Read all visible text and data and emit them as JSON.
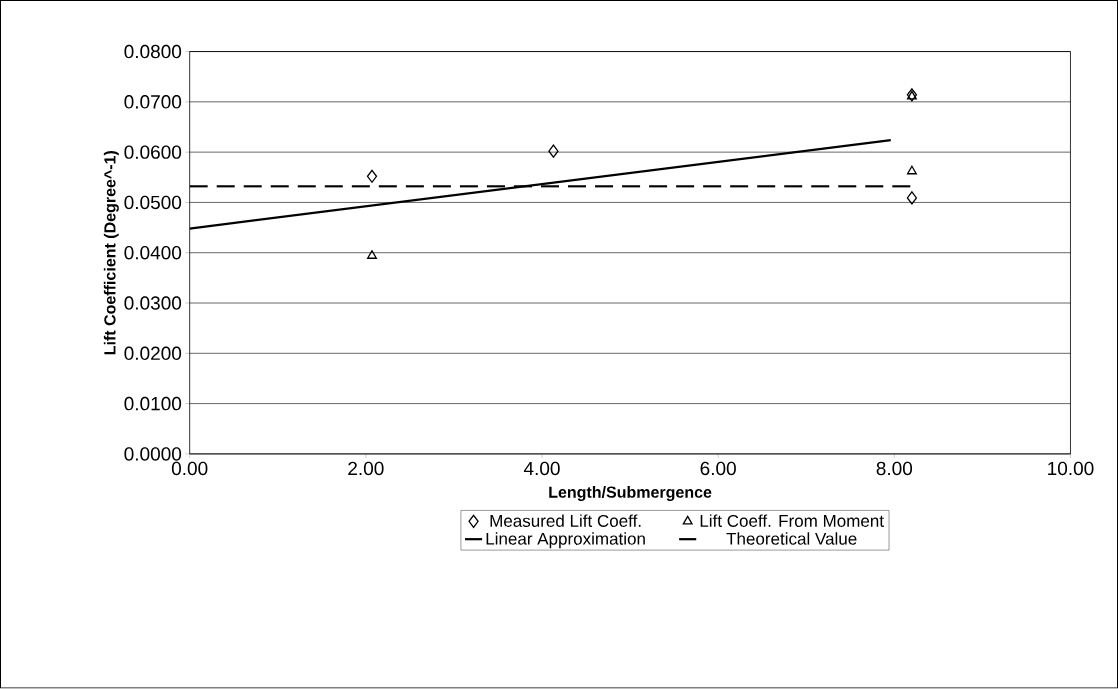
{
  "chart_data": {
    "type": "scatter",
    "xlabel": "Length/Submergence",
    "ylabel": "Lift Coefficient (Degree^-1)",
    "xlim": [
      0,
      10
    ],
    "ylim": [
      0,
      0.08
    ],
    "xticks": [
      {
        "value": 0,
        "label": "0.00"
      },
      {
        "value": 2,
        "label": "2.00"
      },
      {
        "value": 4,
        "label": "4.00"
      },
      {
        "value": 6,
        "label": "6.00"
      },
      {
        "value": 8,
        "label": "8.00"
      },
      {
        "value": 10,
        "label": "10.00"
      }
    ],
    "yticks": [
      {
        "value": 0,
        "label": "0.0000"
      },
      {
        "value": 0.01,
        "label": "0.0100"
      },
      {
        "value": 0.02,
        "label": "0.0200"
      },
      {
        "value": 0.03,
        "label": "0.0300"
      },
      {
        "value": 0.04,
        "label": "0.0400"
      },
      {
        "value": 0.05,
        "label": "0.0500"
      },
      {
        "value": 0.06,
        "label": "0.0600"
      },
      {
        "value": 0.07,
        "label": "0.0700"
      },
      {
        "value": 0.08,
        "label": "0.0800"
      }
    ],
    "grid": "y",
    "legend": "bottom",
    "series": [
      {
        "name": "Measured Lift Coeff.",
        "marker": "diamond",
        "color": "#000000",
        "x": [
          2.07,
          4.13,
          8.2,
          8.2
        ],
        "values": [
          0.0552,
          0.0602,
          0.0714,
          0.0509
        ]
      },
      {
        "name": "Lift Coeff. From Moment",
        "marker": "triangle",
        "color": "#000000",
        "x": [
          2.07,
          8.2,
          8.2
        ],
        "values": [
          0.0394,
          0.0711,
          0.0562
        ]
      },
      {
        "name": "Linear Approximation",
        "type": "line",
        "line_style": "solid",
        "marker": "none",
        "color": "#000000",
        "x": [
          0,
          7.96
        ],
        "values": [
          0.0448,
          0.0624
        ]
      },
      {
        "name": "Theoretical Value",
        "type": "line",
        "line_style": "dashed",
        "marker": "none",
        "color": "#000000",
        "x": [
          0,
          8.2
        ],
        "values": [
          0.0532,
          0.0532
        ]
      }
    ]
  }
}
